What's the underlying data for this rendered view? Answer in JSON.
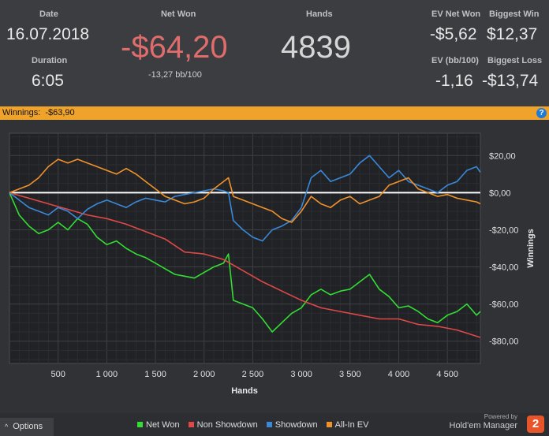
{
  "stats": {
    "date_label": "Date",
    "date_value": "16.07.2018",
    "duration_label": "Duration",
    "duration_value": "6:05",
    "net_won_label": "Net Won",
    "net_won_value": "-$64,20",
    "net_won_sub": "-13,27 bb/100",
    "hands_label": "Hands",
    "hands_value": "4839",
    "ev_net_won_label": "EV Net Won",
    "ev_net_won_value": "-$5,62",
    "ev_bb_label": "EV (bb/100)",
    "ev_bb_value": "-1,16",
    "biggest_win_label": "Biggest Win",
    "biggest_win_value": "$12,37",
    "biggest_loss_label": "Biggest Loss",
    "biggest_loss_value": "-$13,74"
  },
  "winnings_bar": {
    "label": "Winnings:",
    "value": "-$63,90",
    "help_icon": "?"
  },
  "chart_data": {
    "type": "line",
    "xlabel": "Hands",
    "ylabel": "Winnings",
    "xlim": [
      0,
      4839
    ],
    "ylim": [
      -92,
      32
    ],
    "x_ticks": [
      500,
      1000,
      1500,
      2000,
      2500,
      3000,
      3500,
      4000,
      4500
    ],
    "x_tick_labels": [
      "500",
      "1 000",
      "1 500",
      "2 000",
      "2 500",
      "3 000",
      "3 500",
      "4 000",
      "4 500"
    ],
    "y_ticks": [
      20,
      0,
      -20,
      -40,
      -60,
      -80
    ],
    "y_tick_labels": [
      "$20,00",
      "$0,00",
      "-$20,00",
      "-$40,00",
      "-$60,00",
      "-$80,00"
    ],
    "grid": true,
    "legend_position": "bottom",
    "series": [
      {
        "name": "Net Won",
        "color": "#33dd33",
        "x": [
          0,
          100,
          200,
          300,
          400,
          500,
          600,
          700,
          800,
          900,
          1000,
          1100,
          1200,
          1300,
          1400,
          1500,
          1600,
          1700,
          1800,
          1900,
          2000,
          2100,
          2200,
          2250,
          2300,
          2400,
          2500,
          2600,
          2700,
          2800,
          2900,
          3000,
          3100,
          3200,
          3300,
          3400,
          3500,
          3600,
          3700,
          3800,
          3900,
          4000,
          4100,
          4200,
          4300,
          4400,
          4500,
          4600,
          4700,
          4800,
          4839
        ],
        "y": [
          0,
          -12,
          -18,
          -22,
          -20,
          -16,
          -20,
          -14,
          -17,
          -24,
          -28,
          -26,
          -30,
          -33,
          -35,
          -38,
          -41,
          -44,
          -45,
          -46,
          -43,
          -40,
          -38,
          -33,
          -58,
          -60,
          -62,
          -68,
          -75,
          -70,
          -65,
          -62,
          -55,
          -52,
          -55,
          -53,
          -52,
          -48,
          -44,
          -52,
          -56,
          -62,
          -61,
          -64,
          -68,
          -70,
          -66,
          -64,
          -60,
          -66,
          -64
        ]
      },
      {
        "name": "Non Showdown",
        "color": "#e04848",
        "x": [
          0,
          200,
          400,
          600,
          800,
          1000,
          1200,
          1400,
          1600,
          1800,
          2000,
          2200,
          2400,
          2600,
          2800,
          3000,
          3200,
          3400,
          3600,
          3800,
          4000,
          4200,
          4400,
          4600,
          4839
        ],
        "y": [
          0,
          -3,
          -6,
          -9,
          -12,
          -14,
          -17,
          -21,
          -25,
          -32,
          -33,
          -36,
          -42,
          -48,
          -53,
          -58,
          -62,
          -64,
          -66,
          -68,
          -68,
          -71,
          -72,
          -74,
          -78
        ]
      },
      {
        "name": "Showdown",
        "color": "#3a88d8",
        "x": [
          0,
          100,
          200,
          300,
          400,
          500,
          600,
          700,
          800,
          900,
          1000,
          1100,
          1200,
          1300,
          1400,
          1500,
          1600,
          1700,
          1800,
          1900,
          2000,
          2100,
          2200,
          2250,
          2300,
          2400,
          2500,
          2600,
          2700,
          2800,
          2900,
          3000,
          3100,
          3200,
          3300,
          3400,
          3500,
          3600,
          3700,
          3800,
          3900,
          4000,
          4100,
          4200,
          4300,
          4400,
          4500,
          4600,
          4700,
          4800,
          4839
        ],
        "y": [
          0,
          -4,
          -8,
          -10,
          -12,
          -8,
          -10,
          -14,
          -9,
          -6,
          -4,
          -6,
          -8,
          -5,
          -3,
          -4,
          -5,
          -2,
          -1,
          0,
          1,
          2,
          1,
          0,
          -15,
          -20,
          -24,
          -26,
          -20,
          -18,
          -15,
          -8,
          8,
          12,
          6,
          8,
          10,
          16,
          20,
          14,
          8,
          12,
          6,
          4,
          2,
          0,
          4,
          6,
          12,
          14,
          11
        ]
      },
      {
        "name": "All-In EV",
        "color": "#f0922a",
        "x": [
          0,
          100,
          200,
          300,
          400,
          500,
          600,
          700,
          800,
          900,
          1000,
          1100,
          1200,
          1300,
          1400,
          1500,
          1600,
          1700,
          1800,
          1900,
          2000,
          2100,
          2200,
          2250,
          2300,
          2400,
          2500,
          2600,
          2700,
          2800,
          2900,
          3000,
          3100,
          3200,
          3300,
          3400,
          3500,
          3600,
          3700,
          3800,
          3900,
          4000,
          4100,
          4200,
          4300,
          4400,
          4500,
          4600,
          4700,
          4800,
          4839
        ],
        "y": [
          0,
          2,
          4,
          8,
          14,
          18,
          16,
          18,
          16,
          14,
          12,
          10,
          13,
          10,
          6,
          2,
          -2,
          -4,
          -6,
          -5,
          -3,
          2,
          6,
          8,
          -2,
          -4,
          -6,
          -8,
          -10,
          -14,
          -16,
          -10,
          -2,
          -6,
          -8,
          -4,
          -2,
          -6,
          -4,
          -2,
          4,
          6,
          8,
          2,
          0,
          -2,
          -1,
          -3,
          -4,
          -5,
          -6
        ]
      }
    ]
  },
  "footer": {
    "options_label": "Options",
    "options_icon": "chevron-up-icon",
    "legend": [
      "Net Won",
      "Non Showdown",
      "Showdown",
      "All-In EV"
    ],
    "powered_by": "Powered by",
    "brand_name": "Hold'em Manager",
    "brand_logo_text": "2"
  }
}
